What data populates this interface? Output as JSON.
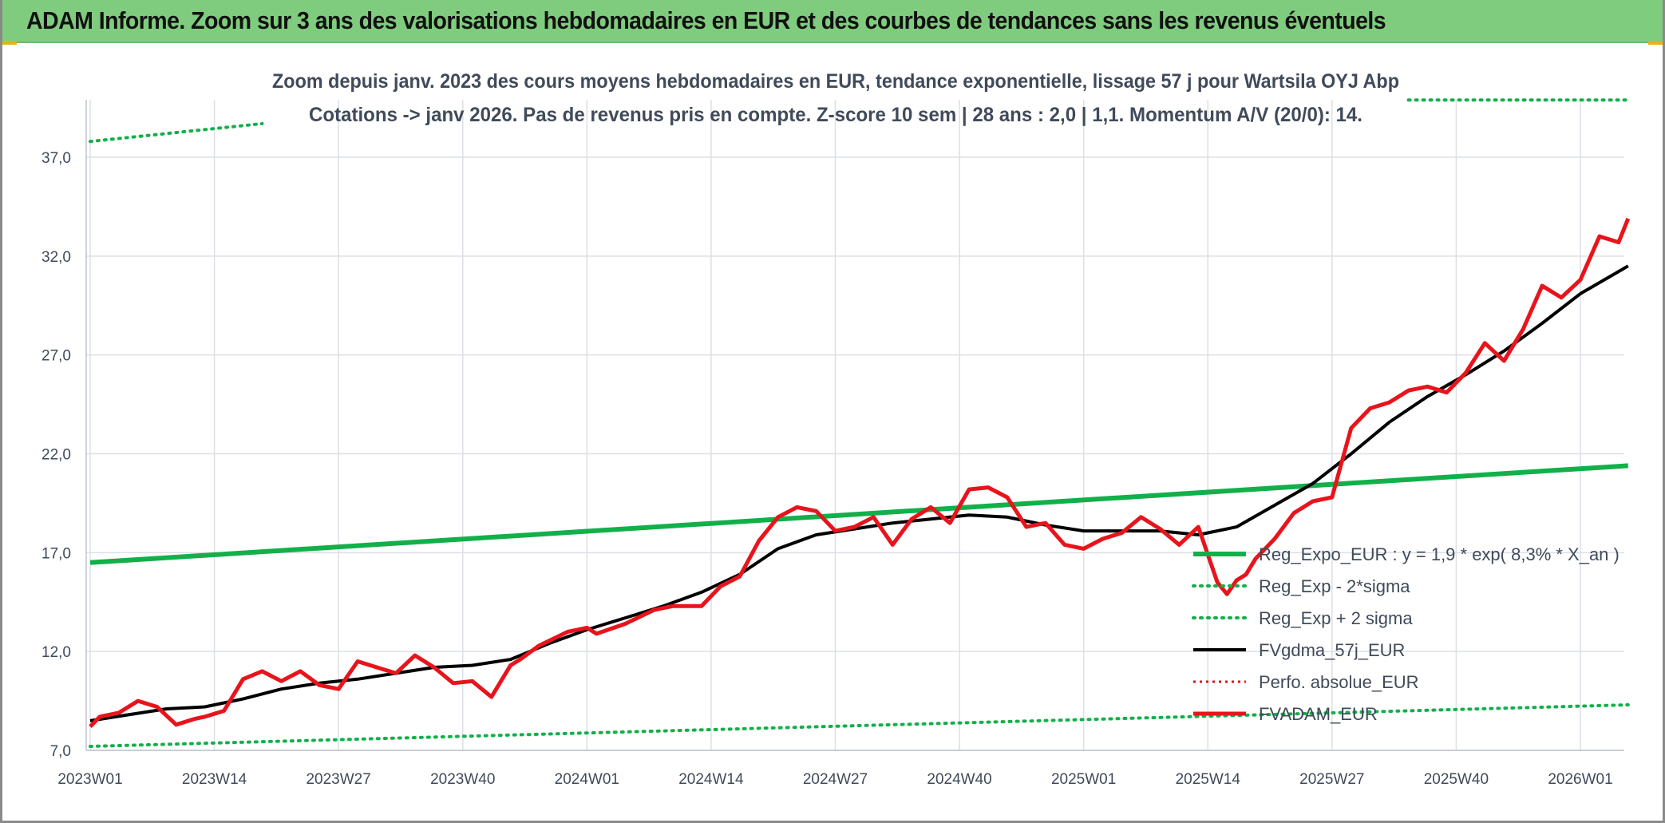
{
  "banner": {
    "title": "ADAM Informe. Zoom sur 3 ans des valorisations hebdomadaires en EUR et des courbes de tendances sans les revenus éventuels"
  },
  "colors": {
    "banner_bg": "#80cc7e",
    "reg_expo": "#12b04a",
    "sigma": "#12b04a",
    "fvgdma": "#000000",
    "perfo": "#e0141c",
    "fvadam": "#e8141c",
    "text": "#404a5a"
  },
  "chart_data": {
    "type": "line",
    "title_lines": [
      "Zoom depuis janv. 2023 des cours moyens hebdomadaires en EUR, tendance exponentielle, lissage 57 j pour Wartsila OYJ Abp",
      "Cotations -> janv 2026. Pas de revenus pris en compte. Z-score 10 sem | 28 ans : 2,0 | 1,1. Momentum A/V (20/0): 14."
    ],
    "xlabel": "",
    "ylabel": "",
    "ylim": [
      7.0,
      37.0
    ],
    "y_ticks": [
      "7,0",
      "12,0",
      "17,0",
      "22,0",
      "27,0",
      "32,0",
      "37,0"
    ],
    "x_ticks": [
      "2023W01",
      "2023W14",
      "2023W27",
      "2023W40",
      "2024W01",
      "2024W14",
      "2024W27",
      "2024W40",
      "2025W01",
      "2025W14",
      "2025W27",
      "2025W40",
      "2026W01"
    ],
    "x_tick_weeks": [
      0,
      13,
      26,
      39,
      52,
      65,
      78,
      91,
      104,
      117,
      130,
      143,
      156
    ],
    "x_range_weeks": [
      0,
      161
    ],
    "grid": true,
    "legend_position": "bottom-right",
    "series": [
      {
        "name": "Reg_Expo_EUR : y = 1,9 * exp( 8,3% *  X_an )",
        "style": "solid-thick",
        "x": [
          0,
          161
        ],
        "values": [
          16.5,
          21.4
        ]
      },
      {
        "name": "Reg_Exp - 2*sigma",
        "style": "dotted",
        "x": [
          0,
          161
        ],
        "values": [
          7.2,
          9.3
        ]
      },
      {
        "name": "Reg_Exp + 2 sigma",
        "style": "dotted",
        "segments": [
          {
            "x": [
              0,
              18
            ],
            "values": [
              37.8,
              38.7
            ]
          },
          {
            "x": [
              138,
              161
            ],
            "values": [
              39.9,
              39.9
            ]
          }
        ]
      },
      {
        "name": "FVgdma_57j_EUR",
        "style": "solid",
        "x": [
          0,
          4,
          8,
          12,
          16,
          20,
          24,
          28,
          32,
          36,
          40,
          44,
          48,
          52,
          56,
          60,
          64,
          68,
          72,
          76,
          80,
          84,
          88,
          92,
          96,
          100,
          104,
          108,
          112,
          116,
          120,
          124,
          128,
          132,
          136,
          140,
          144,
          148,
          152,
          156,
          161
        ],
        "values": [
          8.5,
          8.8,
          9.1,
          9.2,
          9.6,
          10.1,
          10.4,
          10.6,
          10.9,
          11.2,
          11.3,
          11.6,
          12.4,
          13.1,
          13.7,
          14.3,
          15.0,
          15.9,
          17.2,
          17.9,
          18.2,
          18.5,
          18.7,
          18.9,
          18.8,
          18.4,
          18.1,
          18.1,
          18.1,
          17.9,
          18.3,
          19.4,
          20.5,
          22.0,
          23.6,
          24.9,
          26.0,
          27.2,
          28.6,
          30.1,
          31.5
        ]
      },
      {
        "name": "Perfo. absolue_EUR",
        "style": "dotted",
        "x": [],
        "values": []
      },
      {
        "name": "FVADAM_EUR",
        "style": "solid-thick",
        "x": [
          0,
          1,
          3,
          5,
          7,
          9,
          11,
          12,
          14,
          16,
          18,
          20,
          22,
          24,
          26,
          28,
          30,
          32,
          34,
          36,
          38,
          40,
          42,
          44,
          45,
          47,
          50,
          52,
          53,
          56,
          59,
          61,
          64,
          66,
          68,
          70,
          72,
          74,
          76,
          78,
          80,
          82,
          84,
          86,
          88,
          90,
          92,
          94,
          96,
          98,
          100,
          102,
          104,
          106,
          108,
          110,
          112,
          114,
          116,
          118,
          119,
          120,
          121,
          122,
          124,
          126,
          128,
          130,
          132,
          134,
          136,
          138,
          140,
          142,
          144,
          146,
          148,
          150,
          152,
          154,
          156,
          158,
          160,
          161
        ],
        "values": [
          8.2,
          8.7,
          8.9,
          9.5,
          9.2,
          8.3,
          8.6,
          8.7,
          9.0,
          10.6,
          11.0,
          10.5,
          11.0,
          10.3,
          10.1,
          11.5,
          11.2,
          10.9,
          11.8,
          11.2,
          10.4,
          10.5,
          9.7,
          11.3,
          11.6,
          12.3,
          13.0,
          13.2,
          12.9,
          13.4,
          14.1,
          14.3,
          14.3,
          15.3,
          15.8,
          17.6,
          18.8,
          19.3,
          19.1,
          18.1,
          18.3,
          18.8,
          17.4,
          18.7,
          19.3,
          18.5,
          20.2,
          20.3,
          19.8,
          18.3,
          18.5,
          17.4,
          17.2,
          17.7,
          18.0,
          18.8,
          18.2,
          17.4,
          18.3,
          15.5,
          14.9,
          15.6,
          15.9,
          16.7,
          17.7,
          19.0,
          19.6,
          19.8,
          23.3,
          24.3,
          24.6,
          25.2,
          25.4,
          25.1,
          26.1,
          27.6,
          26.7,
          28.3,
          30.5,
          29.9,
          30.8,
          33.0,
          32.7,
          33.9
        ]
      }
    ]
  }
}
